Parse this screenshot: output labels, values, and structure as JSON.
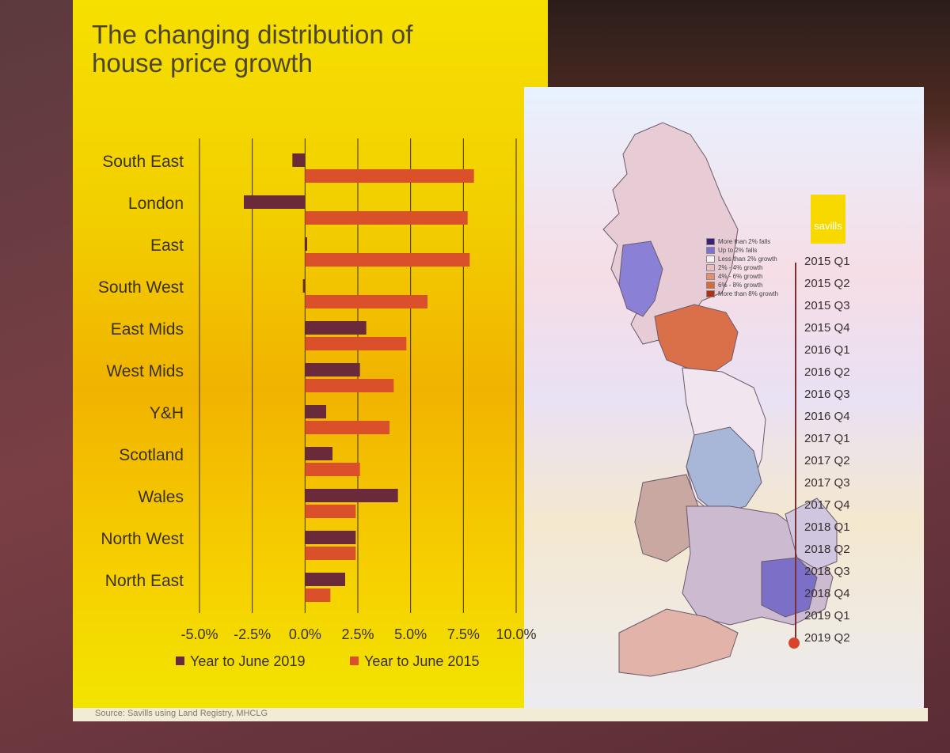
{
  "title_lines": [
    "The changing distribution of",
    "house price growth"
  ],
  "source": "Source: Savills using Land Registry, MHCLG",
  "logo": "savills",
  "chart_data": {
    "type": "bar",
    "orientation": "horizontal",
    "categories": [
      "South East",
      "London",
      "East",
      "South West",
      "East Mids",
      "West Mids",
      "Y&H",
      "Scotland",
      "Wales",
      "North West",
      "North East"
    ],
    "series": [
      {
        "name": "Year to June 2019",
        "color": "#6a2a3a",
        "values": [
          -0.6,
          -2.9,
          0.1,
          -0.1,
          2.9,
          2.6,
          1.0,
          1.3,
          4.4,
          2.4,
          1.9
        ]
      },
      {
        "name": "Year to June 2015",
        "color": "#d9502a",
        "values": [
          8.0,
          7.7,
          7.8,
          5.8,
          4.8,
          4.2,
          4.0,
          2.6,
          2.4,
          2.4,
          1.2
        ]
      }
    ],
    "x_ticks": [
      "-5.0%",
      "-2.5%",
      "0.0%",
      "2.5%",
      "5.0%",
      "7.5%",
      "10.0%"
    ],
    "xlim": [
      -5.0,
      10.0
    ],
    "grid": true,
    "legend_position": "bottom"
  },
  "map_legend": [
    {
      "label": "More than 2% falls",
      "color": "#3b1f7a"
    },
    {
      "label": "Up to 2% falls",
      "color": "#7f6fd0"
    },
    {
      "label": "Less than 2% growth",
      "color": "#f4f0f6"
    },
    {
      "label": "2% - 4% growth",
      "color": "#e8c0c0"
    },
    {
      "label": "4% - 6% growth",
      "color": "#e49070"
    },
    {
      "label": "6% - 8% growth",
      "color": "#d86a3a"
    },
    {
      "label": "More than 8% growth",
      "color": "#b03018"
    }
  ],
  "timeline": [
    "2015 Q1",
    "2015 Q2",
    "2015 Q3",
    "2015 Q4",
    "2016 Q1",
    "2016 Q2",
    "2016 Q3",
    "2016 Q4",
    "2017 Q1",
    "2017 Q2",
    "2017 Q3",
    "2017 Q4",
    "2018 Q1",
    "2018 Q2",
    "2018 Q3",
    "2018 Q4",
    "2019 Q1",
    "2019 Q2"
  ]
}
